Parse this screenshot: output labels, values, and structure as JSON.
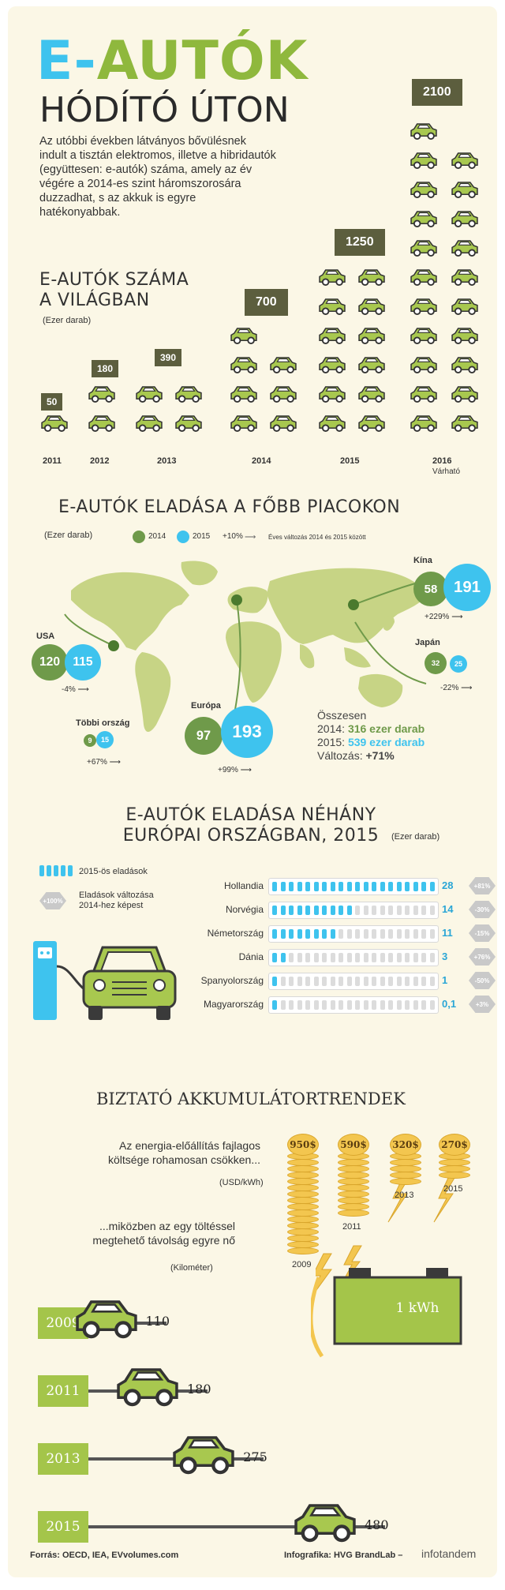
{
  "header": {
    "title_e": "E-",
    "title_autok": "AUTÓK",
    "subtitle": "HÓDÍTÓ ÚTON",
    "intro": "Az utóbbi években látványos bővülésnek indult a tisztán elektromos, illetve a hibridautók (együttesen: e-autók) száma, amely az év végére a 2014-es szint háromszorosára duzzadhat, s az akkuk is egyre hatékonyabbak."
  },
  "world_count": {
    "title_line1": "E-AUTÓK SZÁMA",
    "title_line2": "A VILÁGBAN",
    "unit": "(Ezer darab)",
    "years": [
      {
        "year": "2011",
        "value": "50",
        "cars": 1,
        "note": ""
      },
      {
        "year": "2012",
        "value": "180",
        "cars": 2,
        "note": ""
      },
      {
        "year": "2013",
        "value": "390",
        "cars": 4,
        "note": ""
      },
      {
        "year": "2014",
        "value": "700",
        "cars": 7,
        "note": ""
      },
      {
        "year": "2015",
        "value": "1250",
        "cars": 12,
        "note": ""
      },
      {
        "year": "2016",
        "value": "2100",
        "cars": 21,
        "note": "Várható"
      }
    ]
  },
  "markets": {
    "title": "E-AUTÓK ELADÁSA A FŐBB PIACOKON",
    "unit": "(Ezer darab)",
    "legend_2014": "2014",
    "legend_2015": "2015",
    "legend_change_value": "+10%",
    "legend_change_text": "Éves változás 2014 és 2015 között",
    "regions": {
      "usa": {
        "name": "USA",
        "v2014": "120",
        "v2015": "115",
        "change": "-4%"
      },
      "europe": {
        "name": "Európa",
        "v2014": "97",
        "v2015": "193",
        "change": "+99%"
      },
      "china": {
        "name": "Kína",
        "v2014": "58",
        "v2015": "191",
        "change": "+229%"
      },
      "japan": {
        "name": "Japán",
        "v2014": "32",
        "v2015": "25",
        "change": "-22%"
      },
      "other": {
        "name": "Többi ország",
        "v2014": "9",
        "v2015": "15",
        "change": "+67%"
      }
    },
    "total_title": "Összesen",
    "total_2014_label": "2014: ",
    "total_2014_value": "316 ezer darab",
    "total_2015_label": "2015: ",
    "total_2015_value": "539 ezer darab",
    "total_change_label": "Változás: ",
    "total_change_value": "+71%"
  },
  "europe": {
    "title_line1": "E-AUTÓK ELADÁSA NÉHÁNY",
    "title_line2": "EURÓPAI ORSZÁGBAN, 2015",
    "unit": "(Ezer darab)",
    "legend_sales": "2015-ös eladások",
    "legend_hex": "+100%",
    "legend_change_line1": "Eladások változása",
    "legend_change_line2": "2014-hez képest",
    "countries": [
      {
        "name": "Hollandia",
        "value": "28",
        "change": "+81%",
        "fill": 28
      },
      {
        "name": "Norvégia",
        "value": "14",
        "change": "-30%",
        "fill": 14
      },
      {
        "name": "Németország",
        "value": "11",
        "change": "-15%",
        "fill": 11
      },
      {
        "name": "Dánia",
        "value": "3",
        "change": "+76%",
        "fill": 3
      },
      {
        "name": "Spanyolország",
        "value": "1",
        "change": "-50%",
        "fill": 1
      },
      {
        "name": "Magyarország",
        "value": "0,1",
        "change": "+3%",
        "fill": 0.1
      }
    ]
  },
  "battery": {
    "title": "BIZTATÓ AKKUMULÁTORTRENDEK",
    "cost_line1": "Az energia-előállítás fajlagos",
    "cost_line2": "költsége rohamosan csökken...",
    "cost_unit": "(USD/kWh)",
    "range_line1": "...miközben az egy töltéssel",
    "range_line2": "megtehető távolság egyre nő",
    "range_unit": "(Kilométer)",
    "kwh_label": "1 kWh",
    "costs": [
      {
        "year": "2009",
        "value": "950$"
      },
      {
        "year": "2011",
        "value": "590$"
      },
      {
        "year": "2013",
        "value": "320$"
      },
      {
        "year": "2015",
        "value": "270$"
      }
    ],
    "ranges": [
      {
        "year": "2009",
        "value": "110"
      },
      {
        "year": "2011",
        "value": "180"
      },
      {
        "year": "2013",
        "value": "275"
      },
      {
        "year": "2015",
        "value": "480"
      }
    ]
  },
  "footer": {
    "source": "Forrás: OECD, IEA, EVvolumes.com",
    "credit": "Infografika: HVG BrandLab –",
    "brand": "infotandem"
  },
  "colors": {
    "accent_blue": "#3ec3ee",
    "accent_green": "#8fb83d",
    "olive": "#5c5e3e",
    "car_green": "#a8c84f"
  }
}
